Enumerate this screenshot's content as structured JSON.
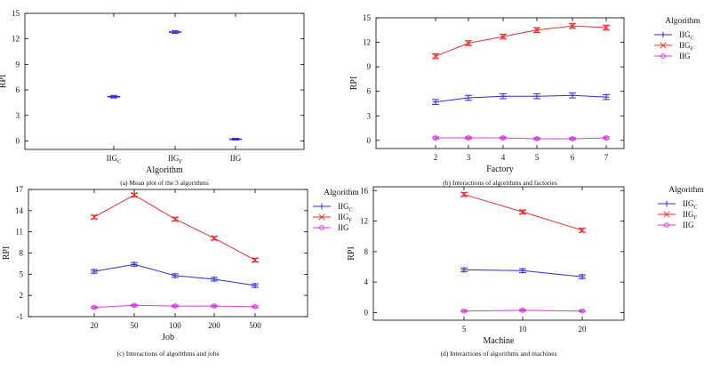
{
  "chart_data": [
    {
      "id": "a",
      "type": "scatter",
      "caption": "(a)  Mean plot of the 3 algorithms",
      "xlabel": "Algorithm",
      "ylabel": "RPI",
      "ylim": [
        -1,
        15
      ],
      "yticks": [
        "0",
        "3",
        "6",
        "9",
        "12",
        "15"
      ],
      "categories": [
        {
          "base": "IIG",
          "sub": "C"
        },
        {
          "base": "IIG",
          "sub": "F"
        },
        {
          "base": "IIG",
          "sub": ""
        }
      ],
      "values": [
        5.2,
        12.8,
        0.2
      ],
      "errors": [
        0.15,
        0.15,
        0.1
      ],
      "colors": [
        "#2b2bd9",
        "#2b2bd9",
        "#2b2bd9"
      ]
    },
    {
      "id": "b",
      "type": "line",
      "caption": "(b)  Interactions of algorithms and factories",
      "xlabel": "Factory",
      "ylabel": "RPI",
      "ylim": [
        -1,
        15
      ],
      "yticks": [
        "0",
        "3",
        "6",
        "9",
        "12",
        "15"
      ],
      "categories": [
        "2",
        "3",
        "4",
        "5",
        "6",
        "7"
      ],
      "legend_title": "Algorithm",
      "series": [
        {
          "name": "IIG",
          "sub": "C",
          "color": "#2b2bd9",
          "marker": "plus",
          "values": [
            4.7,
            5.2,
            5.4,
            5.4,
            5.5,
            5.3
          ],
          "error": 0.3
        },
        {
          "name": "IIG",
          "sub": "F",
          "color": "#e83030",
          "marker": "x",
          "values": [
            10.3,
            11.9,
            12.7,
            13.5,
            14.0,
            13.8
          ],
          "error": 0.3
        },
        {
          "name": "IIG",
          "sub": "",
          "color": "#d93ad9",
          "marker": "circle",
          "values": [
            0.3,
            0.3,
            0.3,
            0.2,
            0.2,
            0.3
          ],
          "error": 0.12
        }
      ]
    },
    {
      "id": "c",
      "type": "line",
      "caption": "(c)  Interactions of algorithms and jobs",
      "xlabel": "Job",
      "ylabel": "RPI",
      "ylim": [
        -1,
        17
      ],
      "yticks": [
        "-1",
        "2",
        "5",
        "8",
        "11",
        "14",
        "17"
      ],
      "categories": [
        "20",
        "50",
        "100",
        "200",
        "500"
      ],
      "legend_title": "Algorithm",
      "series": [
        {
          "name": "IIG",
          "sub": "C",
          "color": "#2b2bd9",
          "marker": "plus",
          "values": [
            5.4,
            6.4,
            4.8,
            4.3,
            3.4
          ],
          "error": 0.25
        },
        {
          "name": "IIG",
          "sub": "F",
          "color": "#e83030",
          "marker": "x",
          "values": [
            13.1,
            16.2,
            12.8,
            10.1,
            7.0
          ],
          "error": 0.25
        },
        {
          "name": "IIG",
          "sub": "",
          "color": "#d93ad9",
          "marker": "circle",
          "values": [
            0.3,
            0.6,
            0.5,
            0.5,
            0.4
          ],
          "error": 0.12
        }
      ]
    },
    {
      "id": "d",
      "type": "line",
      "caption": "(d)  Interactions of algorithms and machines",
      "xlabel": "Machine",
      "ylabel": "RPI",
      "ylim": [
        -1,
        16.5
      ],
      "yticks": [
        "0",
        "4",
        "8",
        "12",
        "16"
      ],
      "categories": [
        "5",
        "10",
        "20"
      ],
      "legend_title": "Algorithm",
      "series": [
        {
          "name": "IIG",
          "sub": "C",
          "color": "#2b2bd9",
          "marker": "plus",
          "values": [
            5.6,
            5.5,
            4.7
          ],
          "error": 0.25
        },
        {
          "name": "IIG",
          "sub": "F",
          "color": "#e83030",
          "marker": "x",
          "values": [
            15.5,
            13.2,
            10.8
          ],
          "error": 0.25
        },
        {
          "name": "IIG",
          "sub": "",
          "color": "#d93ad9",
          "marker": "circle",
          "values": [
            0.2,
            0.3,
            0.2
          ],
          "error": 0.1
        }
      ]
    }
  ]
}
